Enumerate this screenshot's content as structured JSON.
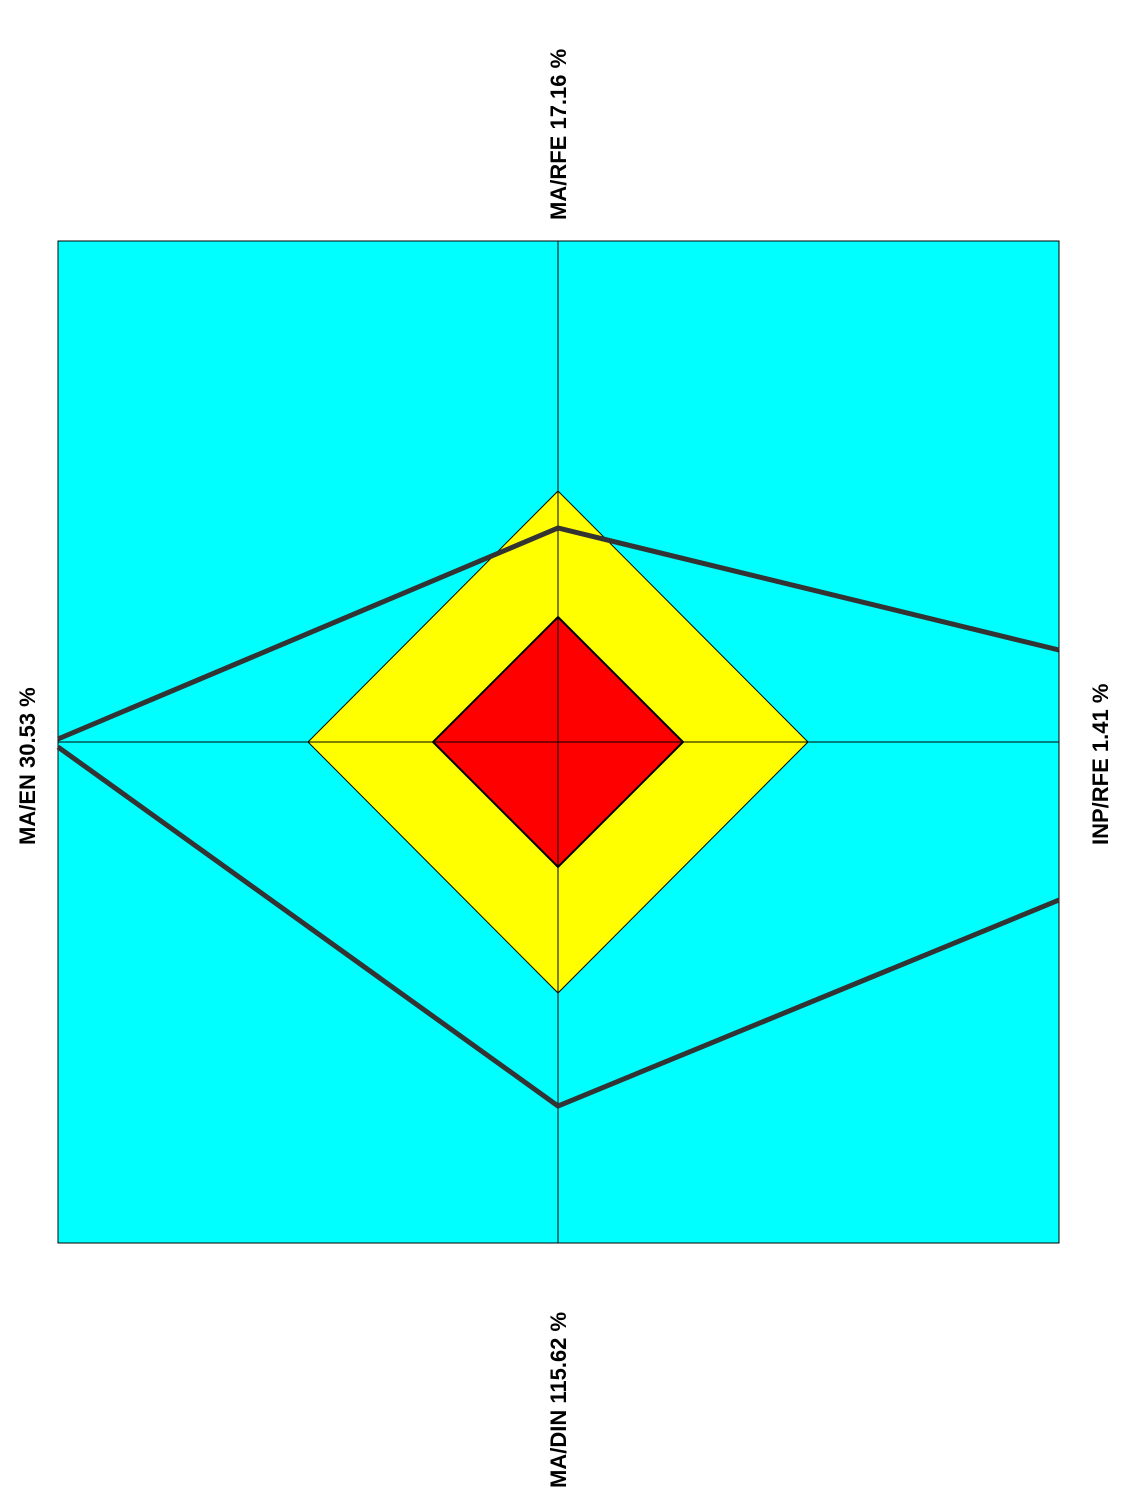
{
  "chart_data": {
    "type": "radar",
    "axes": [
      {
        "name": "MA/RFE",
        "value": 17.16,
        "value_label": "17.16 %"
      },
      {
        "name": "INP/RFE",
        "value": 1.41,
        "value_label": "1.41 %"
      },
      {
        "name": "MA/DIN",
        "value": 115.62,
        "value_label": "115.62 %"
      },
      {
        "name": "MA/EN",
        "value": 30.53,
        "value_label": "30.53 %"
      }
    ],
    "zones": {
      "inner_color": "#ff0000",
      "middle_color": "#ffff00",
      "outer_color": "#00ffff"
    },
    "line_color": "#333333"
  }
}
